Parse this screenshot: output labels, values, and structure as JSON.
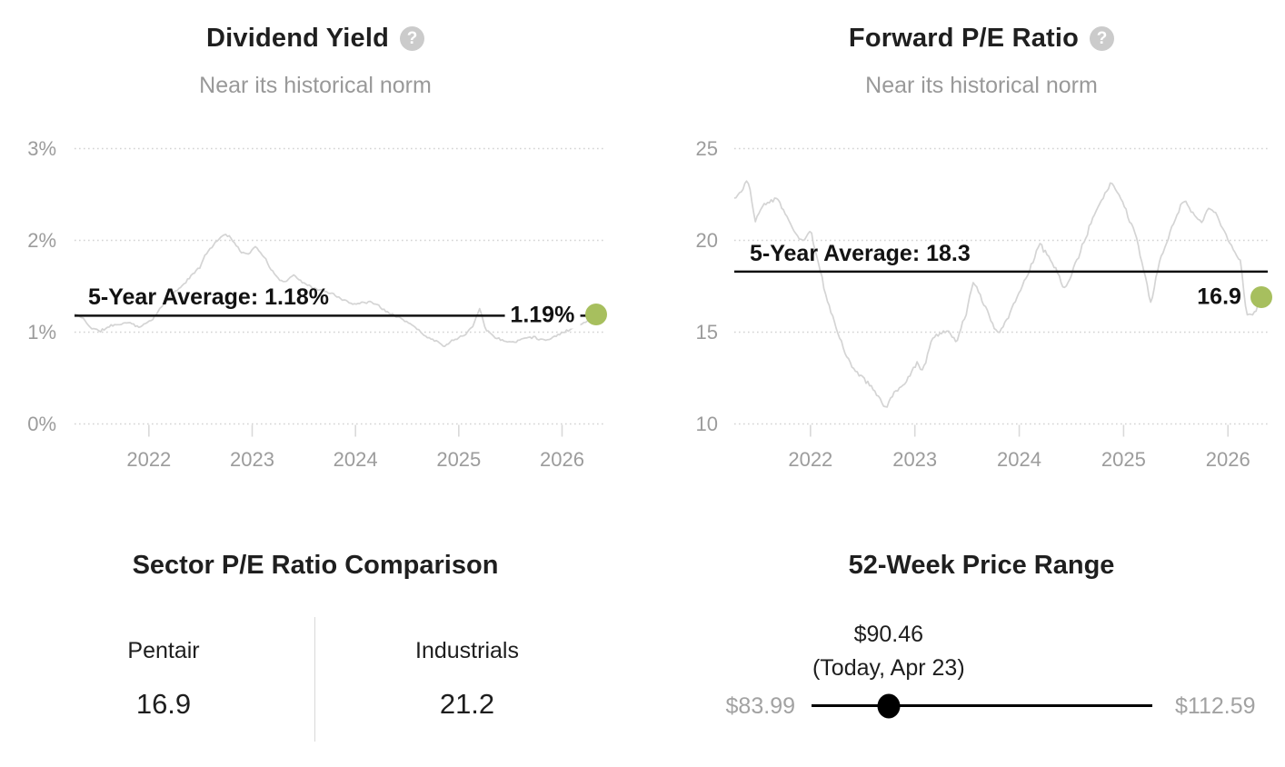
{
  "icons": {
    "help_glyph": "?"
  },
  "colors": {
    "accent_dot": "#a7bf5e",
    "series_line": "#d4d4d4",
    "average_line": "#111111",
    "grid": "#d3d3d3",
    "tick_mark": "#d9d9d9",
    "axis_text": "#9c9c9c",
    "muted_text": "#a2a2a2",
    "title_text": "#1f1f1f"
  },
  "chart_data": [
    {
      "id": "dividend-yield",
      "type": "line",
      "title": "Dividend Yield",
      "subtitle": "Near its historical norm",
      "unit": "%",
      "xlim": [
        2021.28,
        2026.33
      ],
      "ylim": [
        0,
        3
      ],
      "x_ticks": [
        2022,
        2023,
        2024,
        2025,
        2026
      ],
      "y_ticks": [
        {
          "value": 3,
          "label": "3%"
        },
        {
          "value": 2,
          "label": "2%"
        },
        {
          "value": 1,
          "label": "1%"
        },
        {
          "value": 0,
          "label": "0%"
        }
      ],
      "grid": "dotted",
      "legend": "none",
      "average": {
        "value": 1.18,
        "label": "5-Year Average: 1.18%"
      },
      "current": {
        "value": 1.19,
        "label": "1.19%"
      },
      "series": [
        {
          "name": "Dividend Yield",
          "points": [
            [
              2021.28,
              1.2
            ],
            [
              2021.36,
              1.15
            ],
            [
              2021.44,
              1.05
            ],
            [
              2021.52,
              1.01
            ],
            [
              2021.62,
              1.06
            ],
            [
              2021.72,
              1.09
            ],
            [
              2021.82,
              1.1
            ],
            [
              2021.92,
              1.06
            ],
            [
              2022.02,
              1.14
            ],
            [
              2022.12,
              1.27
            ],
            [
              2022.22,
              1.4
            ],
            [
              2022.32,
              1.5
            ],
            [
              2022.42,
              1.62
            ],
            [
              2022.5,
              1.72
            ],
            [
              2022.56,
              1.86
            ],
            [
              2022.64,
              1.98
            ],
            [
              2022.72,
              2.06
            ],
            [
              2022.78,
              2.05
            ],
            [
              2022.84,
              1.96
            ],
            [
              2022.9,
              1.88
            ],
            [
              2022.96,
              1.84
            ],
            [
              2023.02,
              1.94
            ],
            [
              2023.08,
              1.88
            ],
            [
              2023.16,
              1.72
            ],
            [
              2023.24,
              1.6
            ],
            [
              2023.32,
              1.56
            ],
            [
              2023.4,
              1.63
            ],
            [
              2023.48,
              1.56
            ],
            [
              2023.56,
              1.5
            ],
            [
              2023.66,
              1.46
            ],
            [
              2023.76,
              1.42
            ],
            [
              2023.86,
              1.37
            ],
            [
              2023.96,
              1.31
            ],
            [
              2024.06,
              1.33
            ],
            [
              2024.16,
              1.34
            ],
            [
              2024.26,
              1.26
            ],
            [
              2024.36,
              1.21
            ],
            [
              2024.46,
              1.16
            ],
            [
              2024.56,
              1.07
            ],
            [
              2024.66,
              0.98
            ],
            [
              2024.76,
              0.92
            ],
            [
              2024.86,
              0.87
            ],
            [
              2024.96,
              0.93
            ],
            [
              2025.06,
              1.0
            ],
            [
              2025.14,
              1.08
            ],
            [
              2025.2,
              1.28
            ],
            [
              2025.26,
              1.05
            ],
            [
              2025.34,
              0.95
            ],
            [
              2025.44,
              0.91
            ],
            [
              2025.54,
              0.89
            ],
            [
              2025.64,
              0.94
            ],
            [
              2025.74,
              0.95
            ],
            [
              2025.84,
              0.92
            ],
            [
              2025.94,
              0.97
            ],
            [
              2026.04,
              1.02
            ],
            [
              2026.14,
              1.07
            ],
            [
              2026.24,
              1.13
            ],
            [
              2026.33,
              1.19
            ]
          ]
        }
      ]
    },
    {
      "id": "forward-pe",
      "type": "line",
      "title": "Forward P/E Ratio",
      "subtitle": "Near its historical norm",
      "unit": "",
      "xlim": [
        2021.27,
        2026.32
      ],
      "ylim": [
        10,
        25
      ],
      "x_ticks": [
        2022,
        2023,
        2024,
        2025,
        2026
      ],
      "y_ticks": [
        {
          "value": 25,
          "label": "25"
        },
        {
          "value": 20,
          "label": "20"
        },
        {
          "value": 15,
          "label": "15"
        },
        {
          "value": 10,
          "label": "10"
        }
      ],
      "grid": "dotted",
      "legend": "none",
      "average": {
        "value": 18.3,
        "label": "5-Year Average: 18.3"
      },
      "current": {
        "value": 16.9,
        "label": "16.9"
      },
      "series": [
        {
          "name": "Forward P/E Ratio",
          "points": [
            [
              2021.27,
              22.3
            ],
            [
              2021.33,
              22.8
            ],
            [
              2021.4,
              23.3
            ],
            [
              2021.47,
              21.0
            ],
            [
              2021.53,
              21.9
            ],
            [
              2021.6,
              22.0
            ],
            [
              2021.68,
              22.4
            ],
            [
              2021.76,
              21.4
            ],
            [
              2021.84,
              20.6
            ],
            [
              2021.92,
              19.9
            ],
            [
              2022.0,
              20.6
            ],
            [
              2022.08,
              18.6
            ],
            [
              2022.16,
              16.6
            ],
            [
              2022.24,
              15.4
            ],
            [
              2022.32,
              14.0
            ],
            [
              2022.4,
              13.2
            ],
            [
              2022.48,
              12.6
            ],
            [
              2022.56,
              12.2
            ],
            [
              2022.64,
              11.4
            ],
            [
              2022.72,
              10.8
            ],
            [
              2022.8,
              11.6
            ],
            [
              2022.88,
              11.9
            ],
            [
              2022.96,
              12.8
            ],
            [
              2023.02,
              13.3
            ],
            [
              2023.08,
              12.9
            ],
            [
              2023.16,
              14.5
            ],
            [
              2023.24,
              14.9
            ],
            [
              2023.32,
              15.1
            ],
            [
              2023.4,
              14.5
            ],
            [
              2023.48,
              15.9
            ],
            [
              2023.56,
              17.7
            ],
            [
              2023.64,
              16.8
            ],
            [
              2023.72,
              15.7
            ],
            [
              2023.8,
              14.9
            ],
            [
              2023.9,
              15.9
            ],
            [
              2024.0,
              17.3
            ],
            [
              2024.1,
              18.5
            ],
            [
              2024.2,
              19.7
            ],
            [
              2024.28,
              19.1
            ],
            [
              2024.36,
              18.3
            ],
            [
              2024.44,
              17.3
            ],
            [
              2024.52,
              18.4
            ],
            [
              2024.62,
              19.8
            ],
            [
              2024.72,
              21.5
            ],
            [
              2024.8,
              22.4
            ],
            [
              2024.88,
              23.3
            ],
            [
              2024.96,
              22.4
            ],
            [
              2025.04,
              21.3
            ],
            [
              2025.12,
              20.3
            ],
            [
              2025.2,
              18.2
            ],
            [
              2025.26,
              16.5
            ],
            [
              2025.34,
              18.8
            ],
            [
              2025.42,
              20.1
            ],
            [
              2025.5,
              21.3
            ],
            [
              2025.58,
              22.2
            ],
            [
              2025.66,
              21.5
            ],
            [
              2025.74,
              21.0
            ],
            [
              2025.82,
              21.9
            ],
            [
              2025.9,
              21.4
            ],
            [
              2025.98,
              20.3
            ],
            [
              2026.06,
              19.6
            ],
            [
              2026.12,
              19.0
            ],
            [
              2026.18,
              16.1
            ],
            [
              2026.24,
              16.0
            ],
            [
              2026.32,
              16.9
            ]
          ]
        }
      ]
    },
    {
      "id": "sector-pe-comparison",
      "type": "table",
      "title": "Sector P/E Ratio Comparison",
      "columns": [
        {
          "label": "Pentair",
          "value": "16.9"
        },
        {
          "label": "Industrials",
          "value": "21.2"
        }
      ]
    },
    {
      "id": "52-week-price-range",
      "type": "range",
      "title": "52-Week Price Range",
      "min": {
        "value": 83.99,
        "label": "$83.99"
      },
      "max": {
        "value": 112.59,
        "label": "$112.59"
      },
      "current": {
        "value": 90.46,
        "label": "$90.46",
        "note": "(Today, Apr 23)"
      }
    }
  ]
}
